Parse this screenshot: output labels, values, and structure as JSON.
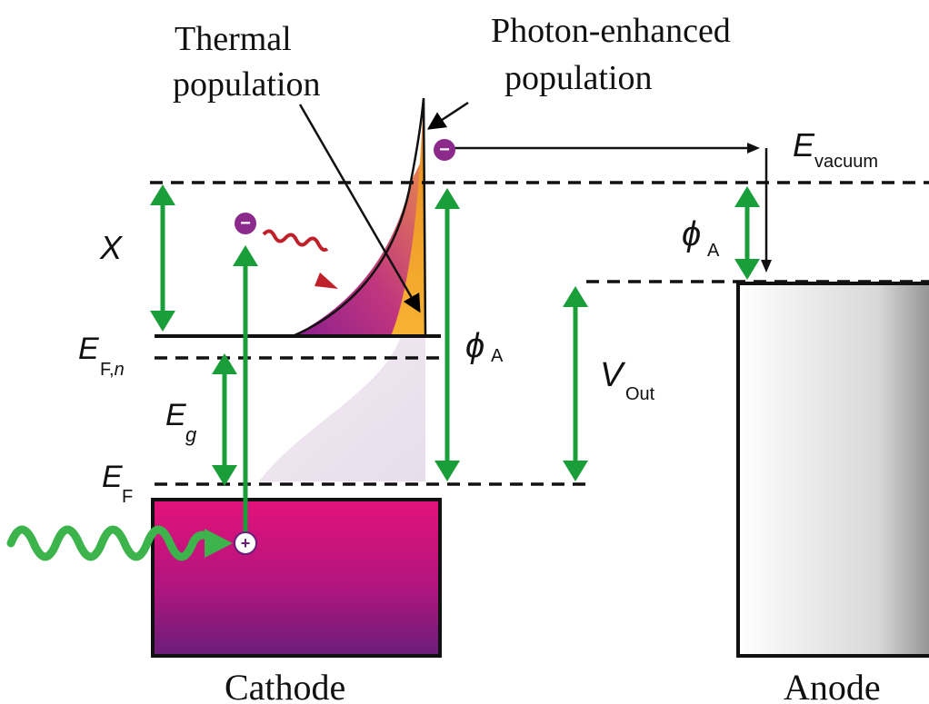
{
  "labels": {
    "thermal_line1": "Thermal",
    "thermal_line2": "population",
    "photon_line1": "Photon-enhanced",
    "photon_line2": "population",
    "cathode": "Cathode",
    "anode": "Anode"
  },
  "symbols": {
    "chi": "X",
    "e_fn_main": "E",
    "e_fn_sub": "F,",
    "e_fn_sub_n": "n",
    "e_g_main": "E",
    "e_g_sub": "g",
    "e_f_main": "E",
    "e_f_sub": "F",
    "phi_main": "ϕ",
    "phi_sub": "A",
    "phi_anode_main": "ϕ",
    "phi_anode_sub": "A",
    "v_out_main": "V",
    "v_out_sub": "Out",
    "e_vac_main": "E",
    "e_vac_sub": "vacuum"
  },
  "charges": {
    "electron": "−",
    "hole": "+"
  },
  "colors": {
    "arrow_green": "#1a9e3a",
    "photon_green": "#3cb44b",
    "cathode_top": "#e0157a",
    "cathode_bottom": "#6a1d7a",
    "photon_pop": "#f5a623",
    "electron": "#8b2a8b",
    "wavy_red": "#c0202a"
  }
}
